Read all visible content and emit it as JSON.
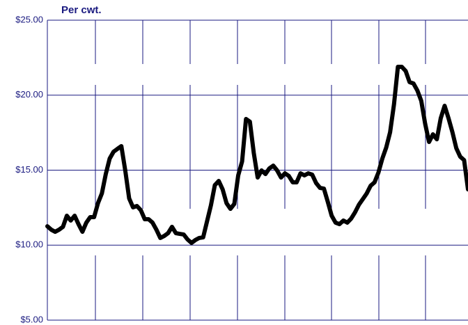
{
  "chart_data": {
    "type": "line",
    "title": "Per cwt.",
    "categories": [
      null,
      null,
      null,
      null,
      null,
      null,
      null,
      null,
      null,
      null,
      null,
      null,
      null,
      null,
      null,
      null,
      null,
      null,
      null,
      null,
      null,
      null,
      null,
      null,
      null,
      null,
      null,
      null,
      null,
      null,
      null,
      null,
      null,
      null,
      null,
      null,
      null,
      null,
      null,
      null,
      null,
      null,
      null,
      null,
      null,
      null,
      null,
      null,
      null,
      null,
      null,
      null,
      null,
      null,
      null,
      null,
      null,
      null,
      null,
      null,
      null,
      null,
      null,
      null,
      null,
      null,
      null,
      null,
      null,
      null,
      null,
      null,
      null,
      null,
      null,
      null,
      null,
      null,
      null,
      null,
      null,
      null,
      null,
      null,
      null,
      null,
      null,
      null,
      null,
      null,
      null,
      null,
      null,
      null,
      null,
      null,
      null,
      null,
      null,
      null,
      null,
      null,
      null,
      null,
      null,
      null,
      null,
      null,
      null
    ],
    "values": [
      11.26,
      11.03,
      10.89,
      11.03,
      11.22,
      11.96,
      11.64,
      11.96,
      11.4,
      10.89,
      11.5,
      11.87,
      11.87,
      12.8,
      13.45,
      14.74,
      15.77,
      16.23,
      16.42,
      16.6,
      14.98,
      13.12,
      12.52,
      12.61,
      12.33,
      11.73,
      11.73,
      11.5,
      11.03,
      10.48,
      10.61,
      10.8,
      11.22,
      10.8,
      10.75,
      10.71,
      10.38,
      10.15,
      10.34,
      10.48,
      10.52,
      11.59,
      12.66,
      14.0,
      14.28,
      13.72,
      12.8,
      12.42,
      12.75,
      14.65,
      15.58,
      18.41,
      18.23,
      16.14,
      14.51,
      14.98,
      14.74,
      15.12,
      15.3,
      14.98,
      14.51,
      14.79,
      14.61,
      14.19,
      14.19,
      14.79,
      14.65,
      14.79,
      14.7,
      14.14,
      13.82,
      13.77,
      12.89,
      11.96,
      11.5,
      11.4,
      11.64,
      11.5,
      11.77,
      12.19,
      12.7,
      13.07,
      13.45,
      13.96,
      14.19,
      14.84,
      15.77,
      16.51,
      17.53,
      19.39,
      21.89,
      21.89,
      21.61,
      20.87,
      20.78,
      20.31,
      19.62,
      18.09,
      16.88,
      17.39,
      17.06,
      18.46,
      19.29,
      18.46,
      17.53,
      16.46,
      15.9,
      15.67,
      13.72
    ],
    "color": "#000000",
    "ylim": [
      5,
      25
    ],
    "yticks": [
      {
        "value": 5,
        "label": "$5.00"
      },
      {
        "value": 10,
        "label": "$10.00"
      },
      {
        "value": 15,
        "label": "$15.00"
      },
      {
        "value": 20,
        "label": "$20.00"
      },
      {
        "value": 25,
        "label": "$25.00"
      }
    ],
    "grid": true
  }
}
